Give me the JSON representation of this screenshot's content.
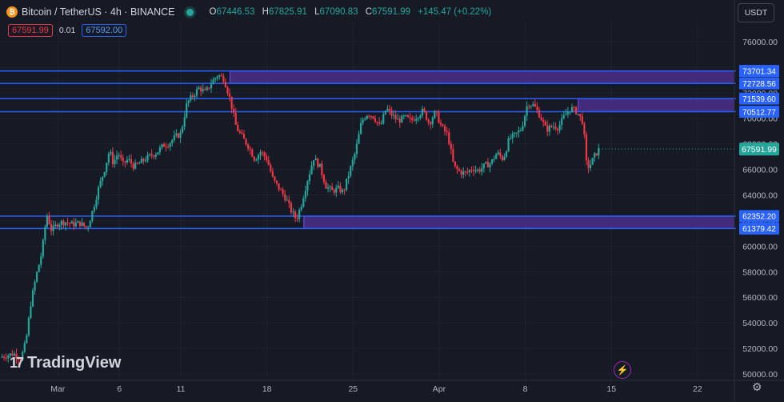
{
  "header": {
    "symbol": "Bitcoin / TetherUS · 4h · BINANCE",
    "coin_glyph": "₿",
    "ohlc": {
      "o_label": "O",
      "o": "67446.53",
      "h_label": "H",
      "h": "67825.91",
      "l_label": "L",
      "l": "67090.83",
      "c_label": "C",
      "c": "67591.99",
      "change": "+145.47 (+0.22%)"
    },
    "sell_price": "67591.99",
    "spread": "0.01",
    "buy_price": "67592.00",
    "currency": "USDT",
    "logo_text": "TradingView",
    "logo_mark": "17"
  },
  "colors": {
    "background": "#161a25",
    "up": "#26a69a",
    "down": "#f23645",
    "level_line": "#2962ff",
    "zone_fill": "#4a2f8a",
    "zone_border": "#7c4dff",
    "grid": "#1f2330"
  },
  "chart_data": {
    "type": "candlestick",
    "title": "Bitcoin / TetherUS · 4h · BINANCE",
    "ylim": [
      49500,
      77500
    ],
    "y_ticks": [
      50000,
      52000,
      54000,
      56000,
      58000,
      60000,
      62000,
      64000,
      66000,
      68000,
      70000,
      72000,
      74000,
      76000
    ],
    "x_ticks": [
      {
        "label": "Mar",
        "day": 0
      },
      {
        "label": "6",
        "day": 5
      },
      {
        "label": "11",
        "day": 10
      },
      {
        "label": "18",
        "day": 17
      },
      {
        "label": "25",
        "day": 24
      },
      {
        "label": "Apr",
        "day": 31
      },
      {
        "label": "8",
        "day": 38
      },
      {
        "label": "15",
        "day": 45
      },
      {
        "label": "22",
        "day": 52
      }
    ],
    "x_range_days": [
      -4.7,
      55
    ],
    "last_price": 67591.99,
    "price_points": [
      [
        -4.7,
        51300
      ],
      [
        -3.6,
        51600
      ],
      [
        -3.0,
        51200
      ],
      [
        -2.6,
        52500
      ],
      [
        -2.2,
        55500
      ],
      [
        -1.8,
        57500
      ],
      [
        -1.3,
        59500
      ],
      [
        -0.9,
        62500
      ],
      [
        -0.5,
        61200
      ],
      [
        0.0,
        61800
      ],
      [
        0.6,
        61900
      ],
      [
        1.2,
        61700
      ],
      [
        1.8,
        61800
      ],
      [
        2.4,
        61400
      ],
      [
        2.9,
        63000
      ],
      [
        3.3,
        64500
      ],
      [
        3.8,
        66000
      ],
      [
        4.2,
        67500
      ],
      [
        4.5,
        66500
      ],
      [
        4.9,
        67300
      ],
      [
        5.3,
        66400
      ],
      [
        5.7,
        66800
      ],
      [
        6.2,
        66200
      ],
      [
        6.8,
        66600
      ],
      [
        7.4,
        67000
      ],
      [
        8.0,
        67300
      ],
      [
        8.6,
        67900
      ],
      [
        9.0,
        68000
      ],
      [
        9.5,
        68500
      ],
      [
        10.0,
        68800
      ],
      [
        10.5,
        71200
      ],
      [
        11.0,
        71800
      ],
      [
        11.5,
        72400
      ],
      [
        12.0,
        72000
      ],
      [
        12.5,
        72800
      ],
      [
        13.0,
        73400
      ],
      [
        13.5,
        73100
      ],
      [
        14.0,
        71500
      ],
      [
        14.5,
        69300
      ],
      [
        15.0,
        68500
      ],
      [
        15.5,
        67800
      ],
      [
        16.0,
        66800
      ],
      [
        16.5,
        67400
      ],
      [
        17.0,
        66800
      ],
      [
        17.5,
        65200
      ],
      [
        18.0,
        64500
      ],
      [
        18.5,
        63800
      ],
      [
        19.0,
        62700
      ],
      [
        19.4,
        62100
      ],
      [
        19.8,
        63300
      ],
      [
        20.3,
        65200
      ],
      [
        20.8,
        66900
      ],
      [
        21.3,
        66200
      ],
      [
        21.8,
        64700
      ],
      [
        22.3,
        64300
      ],
      [
        22.8,
        64500
      ],
      [
        23.2,
        64200
      ],
      [
        23.7,
        65800
      ],
      [
        24.2,
        67400
      ],
      [
        24.7,
        69800
      ],
      [
        25.2,
        70400
      ],
      [
        25.7,
        70100
      ],
      [
        26.2,
        69300
      ],
      [
        26.7,
        70800
      ],
      [
        27.2,
        70200
      ],
      [
        27.7,
        69800
      ],
      [
        28.2,
        70100
      ],
      [
        28.7,
        69800
      ],
      [
        29.2,
        70200
      ],
      [
        29.7,
        70600
      ],
      [
        30.2,
        69600
      ],
      [
        30.7,
        70500
      ],
      [
        31.2,
        69300
      ],
      [
        31.7,
        68700
      ],
      [
        32.2,
        66200
      ],
      [
        32.7,
        65800
      ],
      [
        33.2,
        65700
      ],
      [
        33.7,
        66100
      ],
      [
        34.2,
        65900
      ],
      [
        34.7,
        66300
      ],
      [
        35.2,
        66500
      ],
      [
        35.7,
        67300
      ],
      [
        36.2,
        66800
      ],
      [
        36.7,
        68400
      ],
      [
        37.2,
        68700
      ],
      [
        37.7,
        69200
      ],
      [
        38.2,
        71200
      ],
      [
        38.7,
        71000
      ],
      [
        39.2,
        70200
      ],
      [
        39.7,
        69100
      ],
      [
        40.2,
        69400
      ],
      [
        40.7,
        69300
      ],
      [
        41.2,
        70200
      ],
      [
        41.7,
        70800
      ],
      [
        42.2,
        70500
      ],
      [
        42.7,
        69700
      ],
      [
        43.0,
        66100
      ],
      [
        43.3,
        66400
      ],
      [
        43.6,
        67000
      ],
      [
        44.0,
        67591.99
      ]
    ],
    "levels": [
      73701.34,
      72728.56,
      71539.6,
      70512.77,
      62352.2,
      61379.42
    ],
    "level_labels": [
      "73701.34",
      "72728.56",
      "71539.60",
      "70512.77",
      "62352.20",
      "61379.42"
    ],
    "zones": [
      {
        "from_day": 14.0,
        "low": 72728.56,
        "high": 73701.34
      },
      {
        "from_day": 20.0,
        "low": 61379.42,
        "high": 62352.2
      },
      {
        "from_day": 42.3,
        "low": 70512.77,
        "high": 71539.6
      }
    ]
  }
}
